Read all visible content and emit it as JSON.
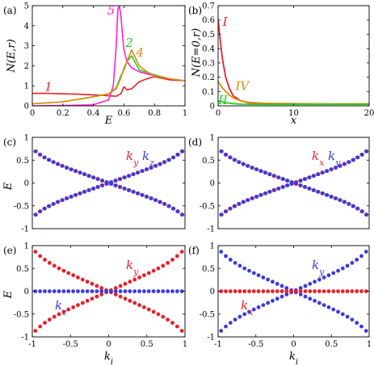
{
  "colors": {
    "red": "#e8202a",
    "blue": "#3a3cdc",
    "magenta": "#ff1fd4",
    "orange": "#e08a0c",
    "green": "#22d01a",
    "dark_red": "#c81818"
  },
  "chart_data": [
    {
      "panel": "(a)",
      "type": "line",
      "xlabel": "E",
      "ylabel": "N(E,r)",
      "xlim": [
        0,
        1
      ],
      "ylim": [
        0,
        5
      ],
      "xticks": [
        "0",
        "0.2",
        "0.4",
        "0.6",
        "0.8",
        "1"
      ],
      "yticks": [
        "0",
        "1",
        "2",
        "3",
        "4",
        "5"
      ],
      "series": [
        {
          "name": "1",
          "color": "#e8202a",
          "x": [
            0,
            0.1,
            0.2,
            0.3,
            0.4,
            0.45,
            0.5,
            0.55,
            0.58,
            0.6,
            0.62,
            0.65,
            0.7,
            0.75,
            0.8,
            0.9,
            1.0
          ],
          "y": [
            0.62,
            0.62,
            0.6,
            0.58,
            0.55,
            0.53,
            0.5,
            0.48,
            0.6,
            0.95,
            0.8,
            0.85,
            1.2,
            1.35,
            1.45,
            1.3,
            1.25
          ]
        },
        {
          "name": "5",
          "color": "#ff1fd4",
          "x": [
            0,
            0.2,
            0.4,
            0.5,
            0.53,
            0.55,
            0.56,
            0.57,
            0.58,
            0.6,
            0.62,
            0.65,
            0.7,
            0.8,
            0.9,
            1.0
          ],
          "y": [
            0,
            0.02,
            0.05,
            0.3,
            1.0,
            3.0,
            4.8,
            5.0,
            4.5,
            2.8,
            2.2,
            1.9,
            1.7,
            1.5,
            1.35,
            1.25
          ]
        },
        {
          "name": "2",
          "color": "#22d01a",
          "x": [
            0,
            0.2,
            0.4,
            0.5,
            0.55,
            0.58,
            0.6,
            0.62,
            0.65,
            0.7,
            0.8,
            0.9,
            1.0
          ],
          "y": [
            0.1,
            0.2,
            0.45,
            0.6,
            0.9,
            1.5,
            1.8,
            2.2,
            2.5,
            1.8,
            1.55,
            1.35,
            1.25
          ]
        },
        {
          "name": "4",
          "color": "#e08a0c",
          "x": [
            0,
            0.2,
            0.4,
            0.5,
            0.55,
            0.58,
            0.6,
            0.62,
            0.65,
            0.7,
            0.75,
            0.8,
            0.9,
            1.0
          ],
          "y": [
            0.1,
            0.2,
            0.45,
            0.6,
            0.85,
            1.4,
            1.9,
            2.2,
            2.8,
            2.0,
            1.7,
            1.5,
            1.35,
            1.25
          ]
        }
      ],
      "annotations": [
        "1",
        "5",
        "2",
        "4"
      ]
    },
    {
      "panel": "(b)",
      "type": "line",
      "xlabel": "x",
      "ylabel": "N(E=0,r)",
      "xlim": [
        0,
        20
      ],
      "ylim": [
        0,
        0.7
      ],
      "xticks": [
        "0",
        "10",
        "20"
      ],
      "yticks": [
        "0",
        "0.1",
        "0.2",
        "0.3",
        "0.4",
        "0.5",
        "0.6",
        "0.7"
      ],
      "series": [
        {
          "name": "I",
          "color": "#e8202a",
          "x": [
            0,
            0.3,
            0.6,
            1,
            1.5,
            2,
            3,
            4,
            6,
            10,
            15,
            20
          ],
          "y": [
            0.6,
            0.45,
            0.32,
            0.2,
            0.12,
            0.07,
            0.035,
            0.022,
            0.015,
            0.012,
            0.011,
            0.011
          ]
        },
        {
          "name": "IV",
          "color": "#e08a0c",
          "x": [
            0,
            0.5,
            1,
            1.5,
            2,
            3,
            4,
            6,
            10,
            15,
            20
          ],
          "y": [
            0.17,
            0.13,
            0.1,
            0.075,
            0.055,
            0.035,
            0.025,
            0.018,
            0.015,
            0.014,
            0.014
          ]
        },
        {
          "name": "II",
          "color": "#22d01a",
          "x": [
            0,
            0.5,
            1,
            2,
            3,
            4,
            6,
            10,
            15,
            20
          ],
          "y": [
            0.035,
            0.028,
            0.022,
            0.015,
            0.012,
            0.011,
            0.01,
            0.01,
            0.01,
            0.01
          ]
        }
      ],
      "annotations": [
        "I",
        "IV",
        "II"
      ]
    },
    {
      "panel": "(c)",
      "type": "scatter",
      "ylabel": "E",
      "xlim": [
        -1,
        1
      ],
      "ylim": [
        -1,
        1
      ],
      "yticks": [
        "-1",
        "-0.5",
        "0",
        "0.5",
        "1"
      ],
      "series": [
        {
          "name": "ky",
          "color": "#e8202a",
          "shape": "cross"
        },
        {
          "name": "kz",
          "color": "#3a3cdc",
          "shape": "cross"
        }
      ],
      "annotations": [
        {
          "text": "ky",
          "color": "#e8202a"
        },
        {
          "text": "kz",
          "color": "#3a3cdc"
        }
      ]
    },
    {
      "panel": "(d)",
      "type": "scatter",
      "xlim": [
        -1,
        1
      ],
      "ylim": [
        -1,
        1
      ],
      "yticks": [
        "-1",
        "-0.5",
        "0",
        "0.5",
        "1"
      ],
      "series": [
        {
          "name": "kx",
          "color": "#e8202a",
          "shape": "cross"
        },
        {
          "name": "ky",
          "color": "#3a3cdc",
          "shape": "cross"
        }
      ],
      "annotations": [
        {
          "text": "kx",
          "color": "#e8202a"
        },
        {
          "text": "ky",
          "color": "#3a3cdc"
        }
      ]
    },
    {
      "panel": "(e)",
      "type": "scatter",
      "ylabel": "E",
      "xlabel": "ki",
      "xlim": [
        -1,
        1
      ],
      "ylim": [
        -1,
        1
      ],
      "xticks": [
        "-1",
        "-0.5",
        "0",
        "0.5",
        "1"
      ],
      "yticks": [
        "-1",
        "-0.5",
        "0",
        "0.5",
        "1"
      ],
      "series": [
        {
          "name": "ky",
          "color": "#e8202a",
          "shape": "cross"
        },
        {
          "name": "kz",
          "color": "#3a3cdc",
          "shape": "flat"
        }
      ],
      "annotations": [
        {
          "text": "ky",
          "color": "#e8202a"
        },
        {
          "text": "kz",
          "color": "#3a3cdc"
        }
      ]
    },
    {
      "panel": "(f)",
      "type": "scatter",
      "xlabel": "ki",
      "xlim": [
        -1,
        1
      ],
      "ylim": [
        -1,
        1
      ],
      "xticks": [
        "-1",
        "-0.5",
        "0",
        "0.5",
        "1"
      ],
      "yticks": [
        "-1",
        "-0.5",
        "0",
        "0.5",
        "1"
      ],
      "series": [
        {
          "name": "ky",
          "color": "#3a3cdc",
          "shape": "cross"
        },
        {
          "name": "kx",
          "color": "#e8202a",
          "shape": "flat"
        }
      ],
      "annotations": [
        {
          "text": "ky",
          "color": "#3a3cdc"
        },
        {
          "text": "kx",
          "color": "#e8202a"
        }
      ]
    }
  ]
}
